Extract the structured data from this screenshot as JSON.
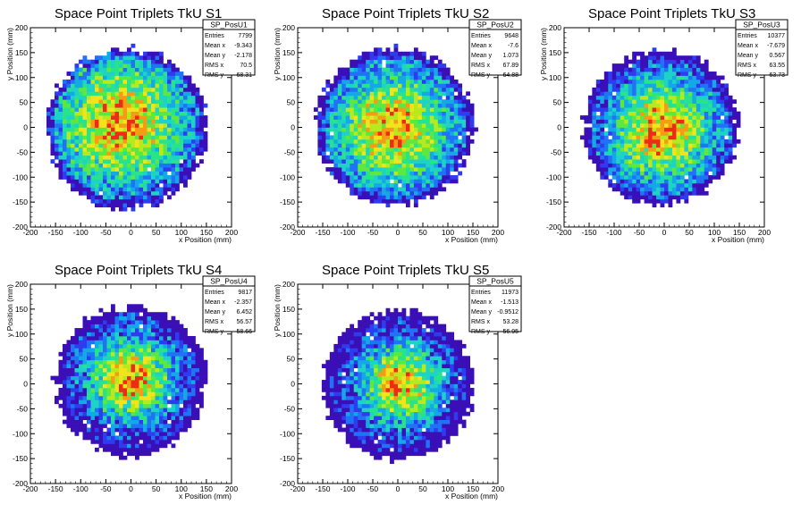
{
  "colors": {
    "background": "#ffffff",
    "frame": "#000000",
    "palette": [
      "#3b0fb6",
      "#2e3cf0",
      "#1f73f5",
      "#14a8e6",
      "#1ed2c6",
      "#27e38e",
      "#5de83f",
      "#b7ea1e",
      "#f2e31c",
      "#f79a16",
      "#ee2b15"
    ]
  },
  "chart_data": [
    {
      "type": "heatmap",
      "title": "Space Point Triplets TkU S1",
      "xlabel": "x Position (mm)",
      "ylabel": "y Position (mm)",
      "xlim": [
        -200,
        200
      ],
      "ylim": [
        -200,
        200
      ],
      "xticks": [
        -200,
        -150,
        -100,
        -50,
        0,
        50,
        100,
        150,
        200
      ],
      "yticks": [
        -200,
        -150,
        -100,
        -50,
        0,
        50,
        100,
        150,
        200
      ],
      "stats": {
        "name": "SP_PosU1",
        "rows": [
          [
            "Entries",
            "7799"
          ],
          [
            "Mean x",
            "-9.343"
          ],
          [
            "Mean y",
            "-2.178"
          ],
          [
            "RMS x",
            "70.5"
          ],
          [
            "RMS y",
            "68.31"
          ]
        ]
      },
      "bin_width": 8,
      "radius": 160,
      "center": [
        -8,
        -2
      ],
      "peak": [
        -20,
        10
      ],
      "spread": 95,
      "seed": 11
    },
    {
      "type": "heatmap",
      "title": "Space Point Triplets TkU S2",
      "xlabel": "x Position (mm)",
      "ylabel": "y Position (mm)",
      "xlim": [
        -200,
        200
      ],
      "ylim": [
        -200,
        200
      ],
      "xticks": [
        -200,
        -150,
        -100,
        -50,
        0,
        50,
        100,
        150,
        200
      ],
      "yticks": [
        -200,
        -150,
        -100,
        -50,
        0,
        50,
        100,
        150,
        200
      ],
      "stats": {
        "name": "SP_PosU2",
        "rows": [
          [
            "Entries",
            "9648"
          ],
          [
            "Mean x",
            "-7.6"
          ],
          [
            "Mean y",
            "1.073"
          ],
          [
            "RMS x",
            "67.89"
          ],
          [
            "RMS y",
            "64.88"
          ]
        ]
      },
      "bin_width": 8,
      "radius": 158,
      "center": [
        -6,
        2
      ],
      "peak": [
        -10,
        0
      ],
      "spread": 85,
      "seed": 23
    },
    {
      "type": "heatmap",
      "title": "Space Point Triplets TkU S3",
      "xlabel": "x Position (mm)",
      "ylabel": "y Position (mm)",
      "xlim": [
        -200,
        200
      ],
      "ylim": [
        -200,
        200
      ],
      "xticks": [
        -200,
        -150,
        -100,
        -50,
        0,
        50,
        100,
        150,
        200
      ],
      "yticks": [
        -200,
        -150,
        -100,
        -50,
        0,
        50,
        100,
        150,
        200
      ],
      "stats": {
        "name": "SP_PosU3",
        "rows": [
          [
            "Entries",
            "10377"
          ],
          [
            "Mean x",
            "-7.679"
          ],
          [
            "Mean y",
            "0.567"
          ],
          [
            "RMS x",
            "63.55"
          ],
          [
            "RMS y",
            "63.73"
          ]
        ]
      },
      "bin_width": 8,
      "radius": 155,
      "center": [
        -6,
        0
      ],
      "peak": [
        -5,
        -5
      ],
      "spread": 78,
      "seed": 37
    },
    {
      "type": "heatmap",
      "title": "Space Point Triplets TkU S4",
      "xlabel": "x Position (mm)",
      "ylabel": "y Position (mm)",
      "xlim": [
        -200,
        200
      ],
      "ylim": [
        -200,
        200
      ],
      "xticks": [
        -200,
        -150,
        -100,
        -50,
        0,
        50,
        100,
        150,
        200
      ],
      "yticks": [
        -200,
        -150,
        -100,
        -50,
        0,
        50,
        100,
        150,
        200
      ],
      "stats": {
        "name": "SP_PosU4",
        "rows": [
          [
            "Entries",
            "9817"
          ],
          [
            "Mean x",
            "-2.357"
          ],
          [
            "Mean y",
            "6.452"
          ],
          [
            "RMS x",
            "56.57"
          ],
          [
            "RMS y",
            "58.66"
          ]
        ]
      },
      "bin_width": 8,
      "radius": 150,
      "center": [
        0,
        6
      ],
      "peak": [
        0,
        10
      ],
      "spread": 62,
      "seed": 41
    },
    {
      "type": "heatmap",
      "title": "Space Point Triplets TkU S5",
      "xlabel": "x Position (mm)",
      "ylabel": "y Position (mm)",
      "xlim": [
        -200,
        200
      ],
      "ylim": [
        -200,
        200
      ],
      "xticks": [
        -200,
        -150,
        -100,
        -50,
        0,
        50,
        100,
        150,
        200
      ],
      "yticks": [
        -200,
        -150,
        -100,
        -50,
        0,
        50,
        100,
        150,
        200
      ],
      "stats": {
        "name": "SP_PosU5",
        "rows": [
          [
            "Entries",
            "11973"
          ],
          [
            "Mean x",
            "-1.513"
          ],
          [
            "Mean y",
            "-0.9512"
          ],
          [
            "RMS x",
            "53.28"
          ],
          [
            "RMS y",
            "56.95"
          ]
        ]
      },
      "bin_width": 8,
      "radius": 150,
      "center": [
        0,
        -2
      ],
      "peak": [
        5,
        0
      ],
      "spread": 58,
      "seed": 53
    }
  ]
}
